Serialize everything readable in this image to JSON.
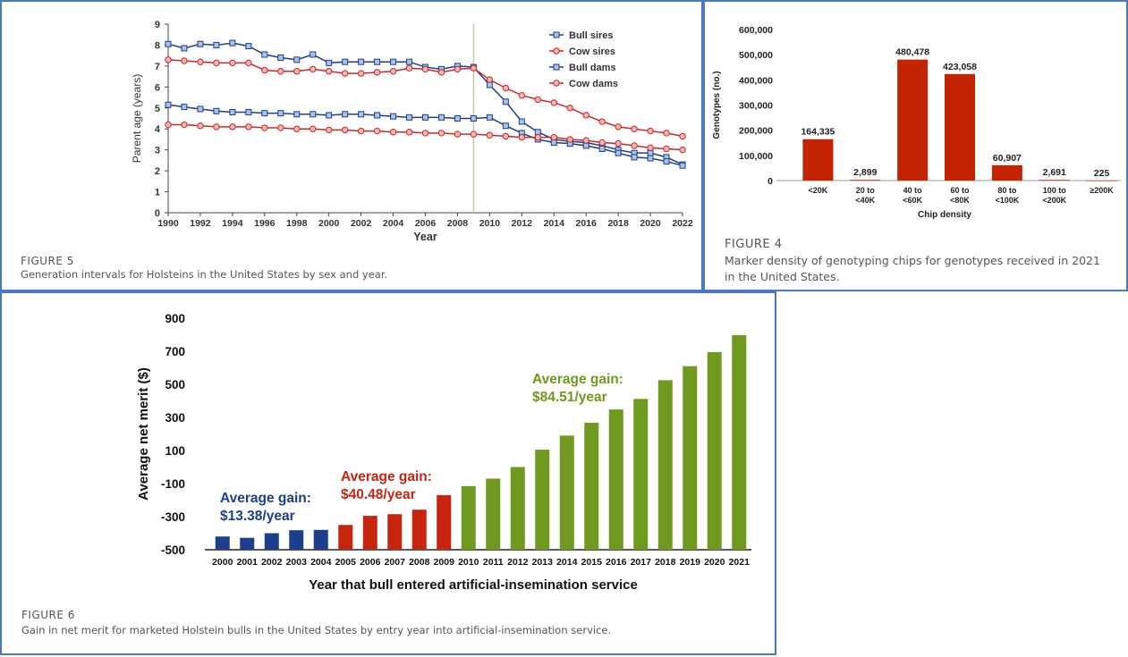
{
  "figures": [
    {
      "label": "FIGURE 5",
      "caption": "Generation intervals for Holsteins in the United States by sex and year."
    },
    {
      "label": "FIGURE 4",
      "caption": "Marker density of genotyping chips for genotypes received in 2021 in the United States."
    },
    {
      "label": "FIGURE 6",
      "caption": "Gain in net merit for marketed Holstein bulls in the United States by entry year into artificial-insemination service."
    }
  ],
  "chart_data": [
    {
      "type": "line",
      "xlabel": "Year",
      "ylabel": "Parent age (years)",
      "xlim": [
        1990,
        2022
      ],
      "ylim": [
        0,
        9
      ],
      "x_ticks": [
        "1990",
        "1992",
        "1994",
        "1996",
        "1998",
        "2000",
        "2002",
        "2004",
        "2006",
        "2008",
        "2010",
        "2012",
        "2014",
        "2016",
        "2018",
        "2020",
        "2022"
      ],
      "y_ticks": [
        "0",
        "1",
        "2",
        "3",
        "4",
        "5",
        "6",
        "7",
        "8",
        "9"
      ],
      "vline": 2009,
      "legend_position": "top-right",
      "x": [
        1990,
        1991,
        1992,
        1993,
        1994,
        1995,
        1996,
        1997,
        1998,
        1999,
        2000,
        2001,
        2002,
        2003,
        2004,
        2005,
        2006,
        2007,
        2008,
        2009,
        2010,
        2011,
        2012,
        2013,
        2014,
        2015,
        2016,
        2017,
        2018,
        2019,
        2020,
        2021,
        2022
      ],
      "series": [
        {
          "name": "Bull sires",
          "color": "#1f3d8a",
          "fill": "#a8c4ea",
          "marker": "square",
          "values": [
            8.05,
            7.85,
            8.05,
            8.0,
            8.1,
            7.95,
            7.55,
            7.4,
            7.3,
            7.55,
            7.15,
            7.2,
            7.2,
            7.2,
            7.2,
            7.2,
            6.95,
            6.85,
            7.0,
            6.95,
            6.1,
            5.3,
            4.35,
            3.85,
            3.5,
            3.4,
            3.35,
            3.2,
            3.0,
            2.85,
            2.85,
            2.65,
            2.3
          ]
        },
        {
          "name": "Cow sires",
          "color": "#c8282a",
          "fill": "#f4b8b0",
          "marker": "circle",
          "values": [
            7.3,
            7.25,
            7.2,
            7.15,
            7.15,
            7.15,
            6.8,
            6.75,
            6.75,
            6.85,
            6.75,
            6.65,
            6.65,
            6.7,
            6.75,
            6.9,
            6.85,
            6.7,
            6.85,
            6.9,
            6.35,
            5.95,
            5.6,
            5.4,
            5.25,
            5.0,
            4.65,
            4.35,
            4.1,
            4.0,
            3.9,
            3.8,
            3.65
          ]
        },
        {
          "name": "Bull dams",
          "color": "#1f3d8a",
          "fill": "#a8c4ea",
          "marker": "square",
          "values": [
            5.15,
            5.05,
            4.95,
            4.85,
            4.8,
            4.8,
            4.75,
            4.75,
            4.7,
            4.7,
            4.65,
            4.7,
            4.7,
            4.65,
            4.6,
            4.55,
            4.55,
            4.55,
            4.5,
            4.5,
            4.55,
            4.15,
            3.8,
            3.5,
            3.35,
            3.3,
            3.2,
            3.05,
            2.85,
            2.65,
            2.6,
            2.45,
            2.25
          ]
        },
        {
          "name": "Cow dams",
          "color": "#c8282a",
          "fill": "#f4b8b0",
          "marker": "circle",
          "values": [
            4.2,
            4.2,
            4.15,
            4.1,
            4.1,
            4.1,
            4.05,
            4.05,
            4.0,
            4.0,
            3.95,
            3.95,
            3.9,
            3.9,
            3.85,
            3.85,
            3.8,
            3.8,
            3.75,
            3.75,
            3.7,
            3.65,
            3.6,
            3.6,
            3.6,
            3.5,
            3.45,
            3.35,
            3.3,
            3.2,
            3.1,
            3.05,
            3.0
          ]
        }
      ]
    },
    {
      "type": "bar",
      "xlabel": "Chip density",
      "ylabel": "Genotypes (no.)",
      "ylim": [
        0,
        600000
      ],
      "y_ticks": [
        "0",
        "100,000",
        "200,000",
        "300,000",
        "400,000",
        "500,000",
        "600,000"
      ],
      "categories": [
        [
          "<20K"
        ],
        [
          "20 to",
          "<40K"
        ],
        [
          "40 to",
          "<60K"
        ],
        [
          "60 to",
          "<80K"
        ],
        [
          "80 to",
          "<100K"
        ],
        [
          "100 to",
          "<200K"
        ],
        [
          "≥200K"
        ]
      ],
      "values": [
        164335,
        2899,
        480478,
        423058,
        60907,
        2691,
        225
      ],
      "labels": [
        "164,335",
        "2,899",
        "480,478",
        "423,058",
        "60,907",
        "2,691",
        "225"
      ],
      "color": "#c42300"
    },
    {
      "type": "bar",
      "xlabel": "Year that bull entered artificial-insemination service",
      "ylabel": "Average net merit ($)",
      "ylim": [
        -500,
        900
      ],
      "y_ticks": [
        "900",
        "700",
        "500",
        "300",
        "100",
        "-100",
        "-300",
        "-500"
      ],
      "categories": [
        "2000",
        "2001",
        "2002",
        "2003",
        "2004",
        "2005",
        "2006",
        "2007",
        "2008",
        "2009",
        "2010",
        "2011",
        "2012",
        "2013",
        "2014",
        "2015",
        "2016",
        "2017",
        "2018",
        "2019",
        "2020",
        "2021"
      ],
      "values": [
        -420,
        -428,
        -400,
        -382,
        -380,
        -350,
        -295,
        -285,
        -258,
        -170,
        -115,
        -70,
        0,
        105,
        190,
        268,
        348,
        412,
        525,
        610,
        695,
        798
      ],
      "groups": [
        {
          "from": 0,
          "to": 4,
          "color": "#1b3f8c",
          "annotation": [
            "Average gain:",
            "$13.38/year"
          ]
        },
        {
          "from": 5,
          "to": 9,
          "color": "#c8240f",
          "annotation": [
            "Average gain:",
            "$40.48/year"
          ]
        },
        {
          "from": 10,
          "to": 21,
          "color": "#6f9a1f",
          "annotation": [
            "Average gain:",
            "$84.51/year"
          ]
        }
      ]
    }
  ]
}
